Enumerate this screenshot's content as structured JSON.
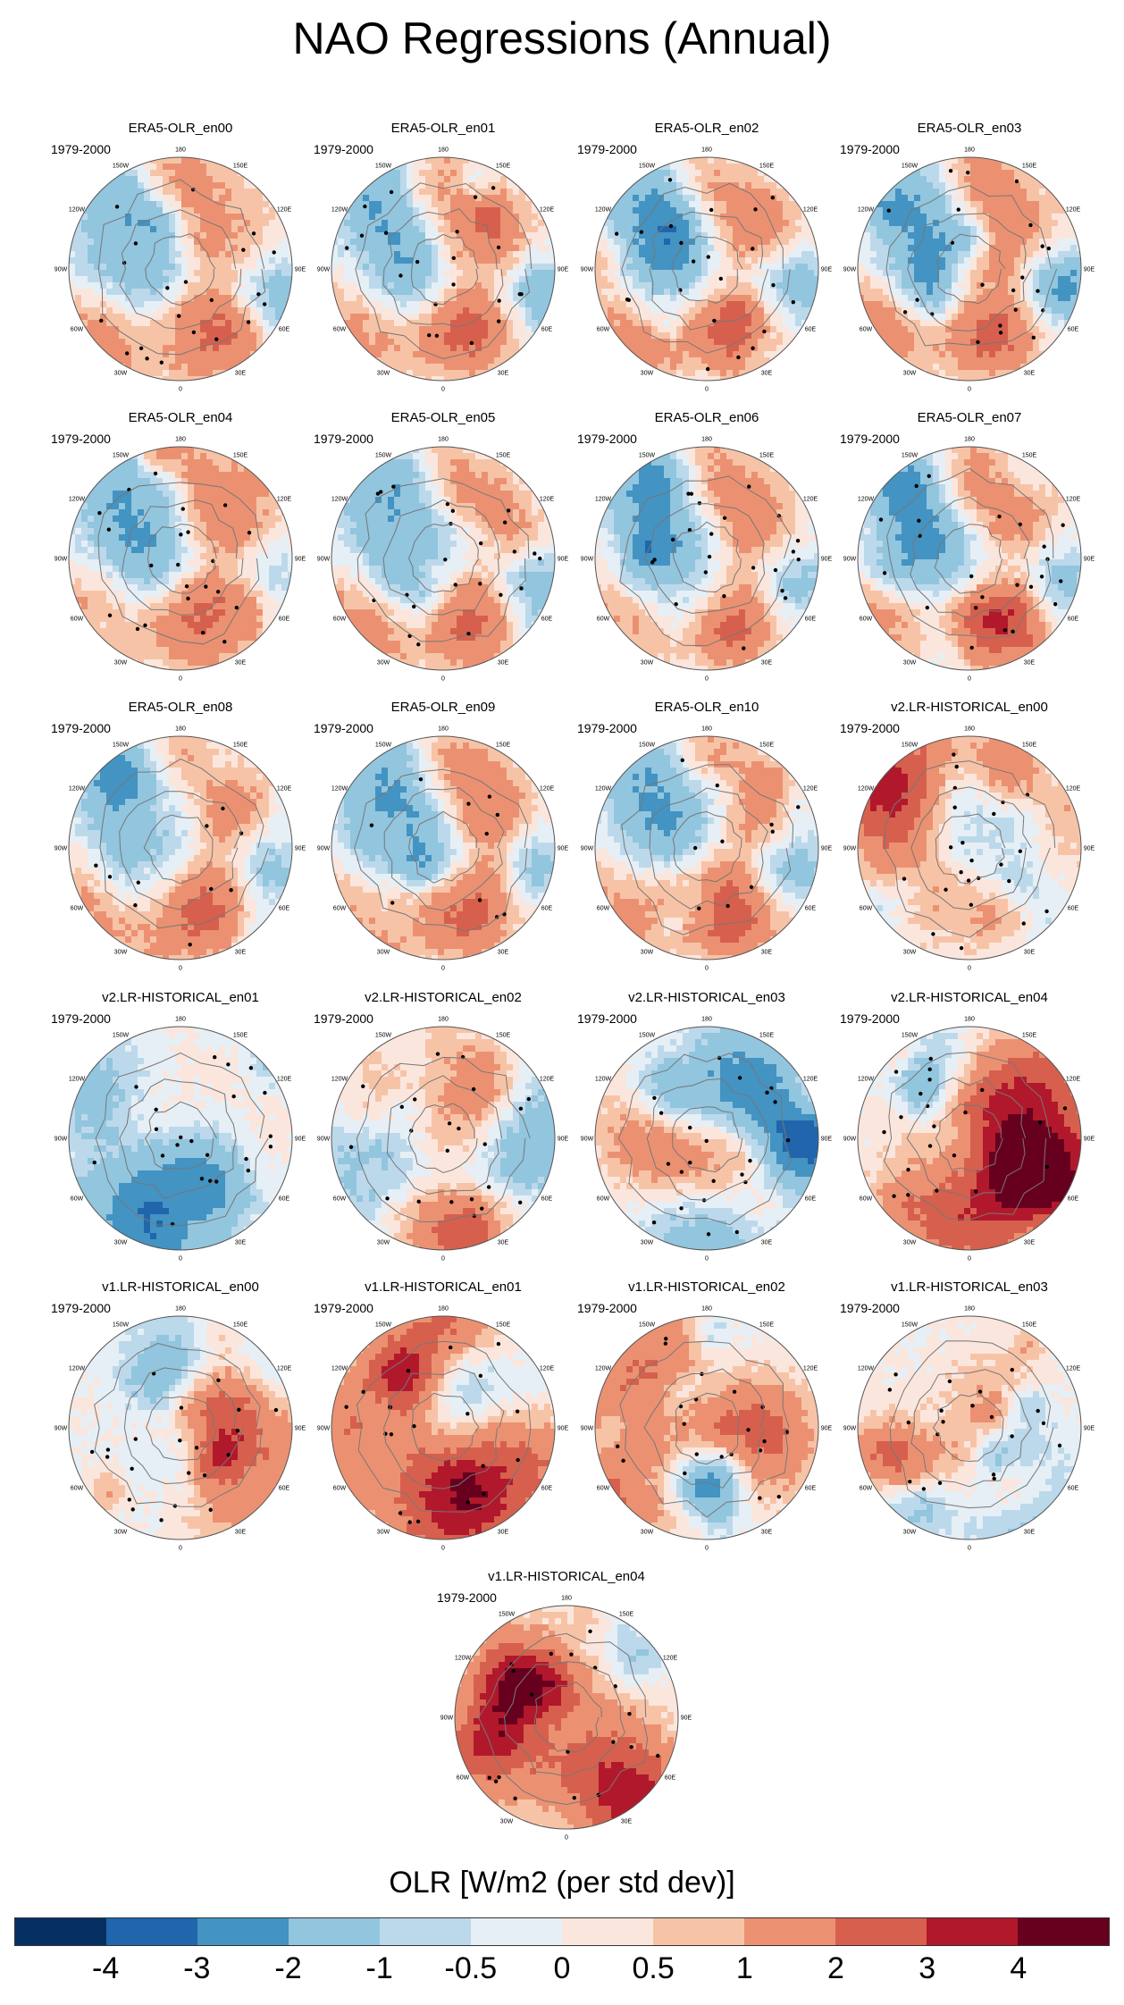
{
  "title": "NAO Regressions (Annual)",
  "period_label": "1979-2000",
  "lon_labels": [
    "180",
    "150E",
    "120E",
    "90E",
    "60E",
    "30E",
    "0",
    "30W",
    "60W",
    "90W",
    "120W",
    "150W"
  ],
  "panels": [
    {
      "title": "ERA5-OLR_en00",
      "pattern": "era5",
      "seed": 1
    },
    {
      "title": "ERA5-OLR_en01",
      "pattern": "era5",
      "seed": 2
    },
    {
      "title": "ERA5-OLR_en02",
      "pattern": "era5",
      "seed": 3
    },
    {
      "title": "ERA5-OLR_en03",
      "pattern": "era5",
      "seed": 4
    },
    {
      "title": "ERA5-OLR_en04",
      "pattern": "era5",
      "seed": 5
    },
    {
      "title": "ERA5-OLR_en05",
      "pattern": "era5",
      "seed": 6
    },
    {
      "title": "ERA5-OLR_en06",
      "pattern": "era5",
      "seed": 7
    },
    {
      "title": "ERA5-OLR_en07",
      "pattern": "era5",
      "seed": 8
    },
    {
      "title": "ERA5-OLR_en08",
      "pattern": "era5",
      "seed": 9
    },
    {
      "title": "ERA5-OLR_en09",
      "pattern": "era5",
      "seed": 10
    },
    {
      "title": "ERA5-OLR_en10",
      "pattern": "era5",
      "seed": 11
    },
    {
      "title": "v2.LR-HISTORICAL_en00",
      "pattern": "model",
      "seed": 12
    },
    {
      "title": "v2.LR-HISTORICAL_en01",
      "pattern": "model",
      "seed": 13
    },
    {
      "title": "v2.LR-HISTORICAL_en02",
      "pattern": "model",
      "seed": 14
    },
    {
      "title": "v2.LR-HISTORICAL_en03",
      "pattern": "model",
      "seed": 15
    },
    {
      "title": "v2.LR-HISTORICAL_en04",
      "pattern": "model",
      "seed": 16
    },
    {
      "title": "v1.LR-HISTORICAL_en00",
      "pattern": "model",
      "seed": 17
    },
    {
      "title": "v1.LR-HISTORICAL_en01",
      "pattern": "model",
      "seed": 18
    },
    {
      "title": "v1.LR-HISTORICAL_en02",
      "pattern": "model",
      "seed": 19
    },
    {
      "title": "v1.LR-HISTORICAL_en03",
      "pattern": "model",
      "seed": 20
    },
    {
      "title": "v1.LR-HISTORICAL_en04",
      "pattern": "model",
      "seed": 21
    }
  ],
  "colorbar": {
    "title": "OLR [W/m2 (per std dev)]",
    "colors": [
      "#053061",
      "#2166ac",
      "#4393c3",
      "#92c5de",
      "#bcd9eb",
      "#e6eff5",
      "#fbe6dd",
      "#f7c3a6",
      "#eb9172",
      "#d6604d",
      "#b2182b",
      "#67001f"
    ],
    "ticks": [
      "-4",
      "-3",
      "-2",
      "-1",
      "-0.5",
      "0",
      "0.5",
      "1",
      "2",
      "3",
      "4"
    ]
  }
}
